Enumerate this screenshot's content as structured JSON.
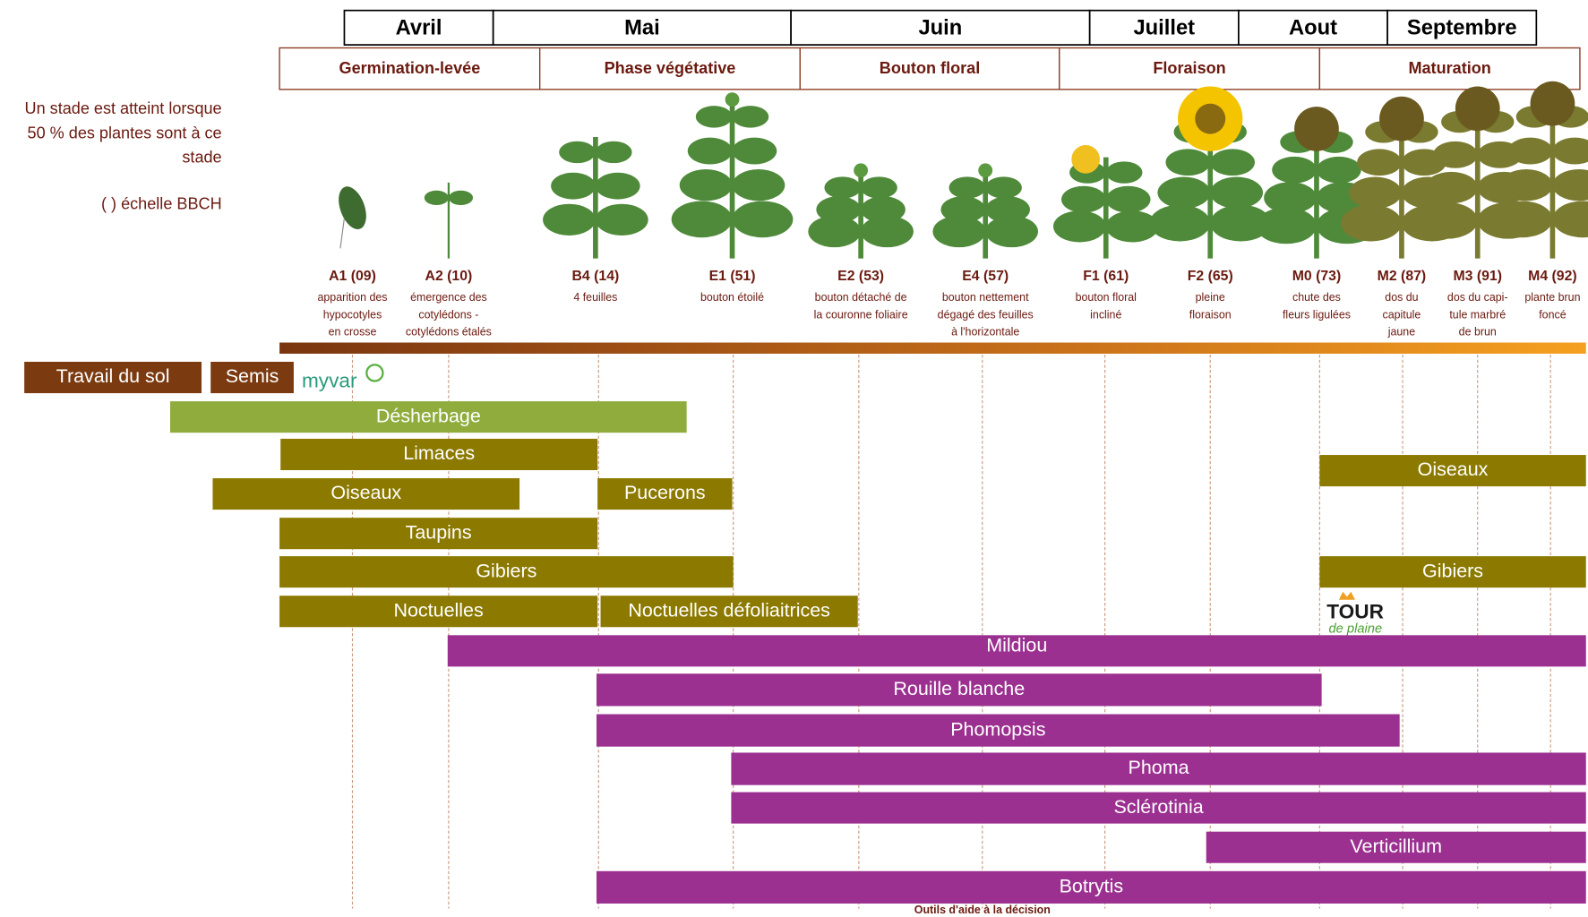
{
  "months": [
    "Avril",
    "Mai",
    "Juin",
    "Juillet",
    "Aout",
    "Septembre"
  ],
  "phases": [
    "Germination-levée",
    "Phase végétative",
    "Bouton floral",
    "Floraison",
    "Maturation"
  ],
  "note": {
    "lines": [
      "Un stade est atteint lorsque",
      "50 % des plantes sont à ce",
      "stade"
    ],
    "scale": "( ) échelle BBCH"
  },
  "stages": [
    {
      "code": "A1 (09)",
      "description": [
        "apparition des",
        "hypocotyles",
        "en crosse"
      ]
    },
    {
      "code": "A2 (10)",
      "description": [
        "émergence des",
        "cotylédons -",
        "cotylédons étalés"
      ]
    },
    {
      "code": "B4 (14)",
      "description": [
        "4 feuilles"
      ]
    },
    {
      "code": "E1 (51)",
      "description": [
        "bouton étoilé"
      ]
    },
    {
      "code": "E2 (53)",
      "description": [
        "bouton détaché de",
        "la couronne foliaire"
      ]
    },
    {
      "code": "E4 (57)",
      "description": [
        "bouton nettement",
        "dégagé des feuilles",
        "à l'horizontale"
      ]
    },
    {
      "code": "F1 (61)",
      "description": [
        "bouton floral",
        "incliné"
      ]
    },
    {
      "code": "F2 (65)",
      "description": [
        "pleine",
        "floraison"
      ]
    },
    {
      "code": "M0 (73)",
      "description": [
        "chute des",
        "fleurs ligulées"
      ]
    },
    {
      "code": "M2 (87)",
      "description": [
        "dos du",
        "capitule",
        "jaune"
      ]
    },
    {
      "code": "M3 (91)",
      "description": [
        "dos du capi-",
        "tule marbré",
        "de brun"
      ]
    },
    {
      "code": "M4 (92)",
      "description": [
        "plante brun",
        "foncé"
      ]
    }
  ],
  "bars": [
    "Travail du sol",
    "Semis",
    "Désherbage",
    "Limaces",
    "Oiseaux",
    "Pucerons",
    "Taupins",
    "Gibiers",
    "Noctuelles",
    "Noctuelles défoliaitrices",
    "Oiseaux",
    "Gibiers",
    "Mildiou",
    "Rouille blanche",
    "Phomopsis",
    "Phoma",
    "Sclérotinia",
    "Verticillium",
    "Botrytis"
  ],
  "logos": {
    "myvar": "myvar",
    "tour": "TOUR",
    "plaine": "de plaine"
  },
  "footer": "Outils d'aide à la décision"
}
